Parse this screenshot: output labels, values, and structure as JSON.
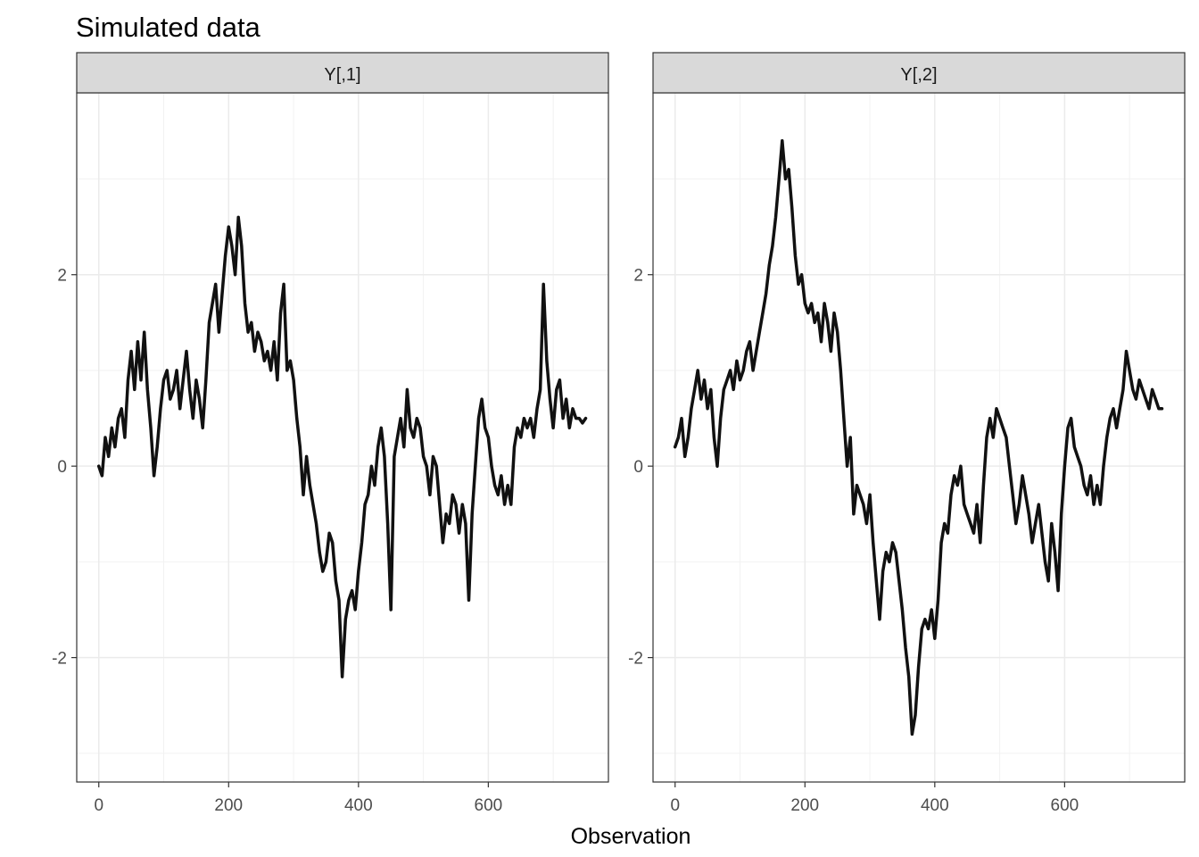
{
  "chart_data": {
    "type": "line",
    "title": "Simulated data",
    "xlabel": "Observation",
    "ylabel": "",
    "xlim": [
      -34,
      785
    ],
    "ylim": [
      -3.3,
      3.9
    ],
    "xticks": [
      0,
      200,
      400,
      600
    ],
    "xminor": [
      100,
      300,
      500,
      700
    ],
    "yticks": [
      -2,
      0,
      2
    ],
    "yminor": [
      -3,
      -1,
      1,
      3
    ],
    "grid": true,
    "line_color": "#111111",
    "panels": [
      {
        "name": "Y[,1]",
        "x": [
          0,
          5,
          10,
          15,
          20,
          25,
          30,
          35,
          40,
          45,
          50,
          55,
          60,
          65,
          70,
          75,
          80,
          85,
          90,
          95,
          100,
          105,
          110,
          115,
          120,
          125,
          130,
          135,
          140,
          145,
          150,
          155,
          160,
          165,
          170,
          175,
          180,
          185,
          190,
          195,
          200,
          205,
          210,
          215,
          220,
          225,
          230,
          235,
          240,
          245,
          250,
          255,
          260,
          265,
          270,
          275,
          280,
          285,
          290,
          295,
          300,
          305,
          310,
          315,
          320,
          325,
          330,
          335,
          340,
          345,
          350,
          355,
          360,
          365,
          370,
          375,
          380,
          385,
          390,
          395,
          400,
          405,
          410,
          415,
          420,
          425,
          430,
          435,
          440,
          445,
          450,
          455,
          460,
          465,
          470,
          475,
          480,
          485,
          490,
          495,
          500,
          505,
          510,
          515,
          520,
          525,
          530,
          535,
          540,
          545,
          550,
          555,
          560,
          565,
          570,
          575,
          580,
          585,
          590,
          595,
          600,
          605,
          610,
          615,
          620,
          625,
          630,
          635,
          640,
          645,
          650,
          655,
          660,
          665,
          670,
          675,
          680,
          685,
          690,
          695,
          700,
          705,
          710,
          715,
          720,
          725,
          730,
          735,
          740,
          745,
          750
        ],
        "y": [
          0.0,
          -0.1,
          0.3,
          0.1,
          0.4,
          0.2,
          0.5,
          0.6,
          0.3,
          0.9,
          1.2,
          0.8,
          1.3,
          0.9,
          1.4,
          0.8,
          0.4,
          -0.1,
          0.2,
          0.6,
          0.9,
          1.0,
          0.7,
          0.8,
          1.0,
          0.6,
          0.9,
          1.2,
          0.8,
          0.5,
          0.9,
          0.7,
          0.4,
          0.9,
          1.5,
          1.7,
          1.9,
          1.4,
          1.8,
          2.2,
          2.5,
          2.3,
          2.0,
          2.6,
          2.3,
          1.7,
          1.4,
          1.5,
          1.2,
          1.4,
          1.3,
          1.1,
          1.2,
          1.0,
          1.3,
          0.9,
          1.6,
          1.9,
          1.0,
          1.1,
          0.9,
          0.5,
          0.2,
          -0.3,
          0.1,
          -0.2,
          -0.4,
          -0.6,
          -0.9,
          -1.1,
          -1.0,
          -0.7,
          -0.8,
          -1.2,
          -1.4,
          -2.2,
          -1.6,
          -1.4,
          -1.3,
          -1.5,
          -1.1,
          -0.8,
          -0.4,
          -0.3,
          0.0,
          -0.2,
          0.2,
          0.4,
          0.1,
          -0.6,
          -1.5,
          0.1,
          0.3,
          0.5,
          0.2,
          0.8,
          0.4,
          0.3,
          0.5,
          0.4,
          0.1,
          0.0,
          -0.3,
          0.1,
          0.0,
          -0.4,
          -0.8,
          -0.5,
          -0.6,
          -0.3,
          -0.4,
          -0.7,
          -0.4,
          -0.6,
          -1.4,
          -0.5,
          0.0,
          0.5,
          0.7,
          0.4,
          0.3,
          0.0,
          -0.2,
          -0.3,
          -0.1,
          -0.4,
          -0.2,
          -0.4,
          0.2,
          0.4,
          0.3,
          0.5,
          0.4,
          0.5,
          0.3,
          0.6,
          0.8,
          1.9,
          1.1,
          0.7,
          0.4,
          0.8,
          0.9,
          0.5,
          0.7,
          0.4,
          0.6,
          0.5,
          0.5,
          0.45,
          0.5
        ]
      },
      {
        "name": "Y[,2]",
        "x": [
          0,
          5,
          10,
          15,
          20,
          25,
          30,
          35,
          40,
          45,
          50,
          55,
          60,
          65,
          70,
          75,
          80,
          85,
          90,
          95,
          100,
          105,
          110,
          115,
          120,
          125,
          130,
          135,
          140,
          145,
          150,
          155,
          160,
          165,
          170,
          175,
          180,
          185,
          190,
          195,
          200,
          205,
          210,
          215,
          220,
          225,
          230,
          235,
          240,
          245,
          250,
          255,
          260,
          265,
          270,
          275,
          280,
          285,
          290,
          295,
          300,
          305,
          310,
          315,
          320,
          325,
          330,
          335,
          340,
          345,
          350,
          355,
          360,
          365,
          370,
          375,
          380,
          385,
          390,
          395,
          400,
          405,
          410,
          415,
          420,
          425,
          430,
          435,
          440,
          445,
          450,
          455,
          460,
          465,
          470,
          475,
          480,
          485,
          490,
          495,
          500,
          505,
          510,
          515,
          520,
          525,
          530,
          535,
          540,
          545,
          550,
          555,
          560,
          565,
          570,
          575,
          580,
          585,
          590,
          595,
          600,
          605,
          610,
          615,
          620,
          625,
          630,
          635,
          640,
          645,
          650,
          655,
          660,
          665,
          670,
          675,
          680,
          685,
          690,
          695,
          700,
          705,
          710,
          715,
          720,
          725,
          730,
          735,
          740,
          745,
          750
        ],
        "y": [
          0.2,
          0.3,
          0.5,
          0.1,
          0.3,
          0.6,
          0.8,
          1.0,
          0.7,
          0.9,
          0.6,
          0.8,
          0.3,
          0.0,
          0.5,
          0.8,
          0.9,
          1.0,
          0.8,
          1.1,
          0.9,
          1.0,
          1.2,
          1.3,
          1.0,
          1.2,
          1.4,
          1.6,
          1.8,
          2.1,
          2.3,
          2.6,
          3.0,
          3.4,
          3.0,
          3.1,
          2.7,
          2.2,
          1.9,
          2.0,
          1.7,
          1.6,
          1.7,
          1.5,
          1.6,
          1.3,
          1.7,
          1.5,
          1.2,
          1.6,
          1.4,
          1.0,
          0.5,
          0.0,
          0.3,
          -0.5,
          -0.2,
          -0.3,
          -0.4,
          -0.6,
          -0.3,
          -0.8,
          -1.2,
          -1.6,
          -1.1,
          -0.9,
          -1.0,
          -0.8,
          -0.9,
          -1.2,
          -1.5,
          -1.9,
          -2.2,
          -2.8,
          -2.6,
          -2.1,
          -1.7,
          -1.6,
          -1.7,
          -1.5,
          -1.8,
          -1.4,
          -0.8,
          -0.6,
          -0.7,
          -0.3,
          -0.1,
          -0.2,
          0.0,
          -0.4,
          -0.5,
          -0.6,
          -0.7,
          -0.4,
          -0.8,
          -0.2,
          0.3,
          0.5,
          0.3,
          0.6,
          0.5,
          0.4,
          0.3,
          0.0,
          -0.3,
          -0.6,
          -0.4,
          -0.1,
          -0.3,
          -0.5,
          -0.8,
          -0.6,
          -0.4,
          -0.7,
          -1.0,
          -1.2,
          -0.6,
          -0.9,
          -1.3,
          -0.5,
          0.0,
          0.4,
          0.5,
          0.2,
          0.1,
          0.0,
          -0.2,
          -0.3,
          -0.1,
          -0.4,
          -0.2,
          -0.4,
          0.0,
          0.3,
          0.5,
          0.6,
          0.4,
          0.6,
          0.8,
          1.2,
          1.0,
          0.8,
          0.7,
          0.9,
          0.8,
          0.7,
          0.6,
          0.8,
          0.7,
          0.6,
          0.6
        ]
      }
    ]
  }
}
